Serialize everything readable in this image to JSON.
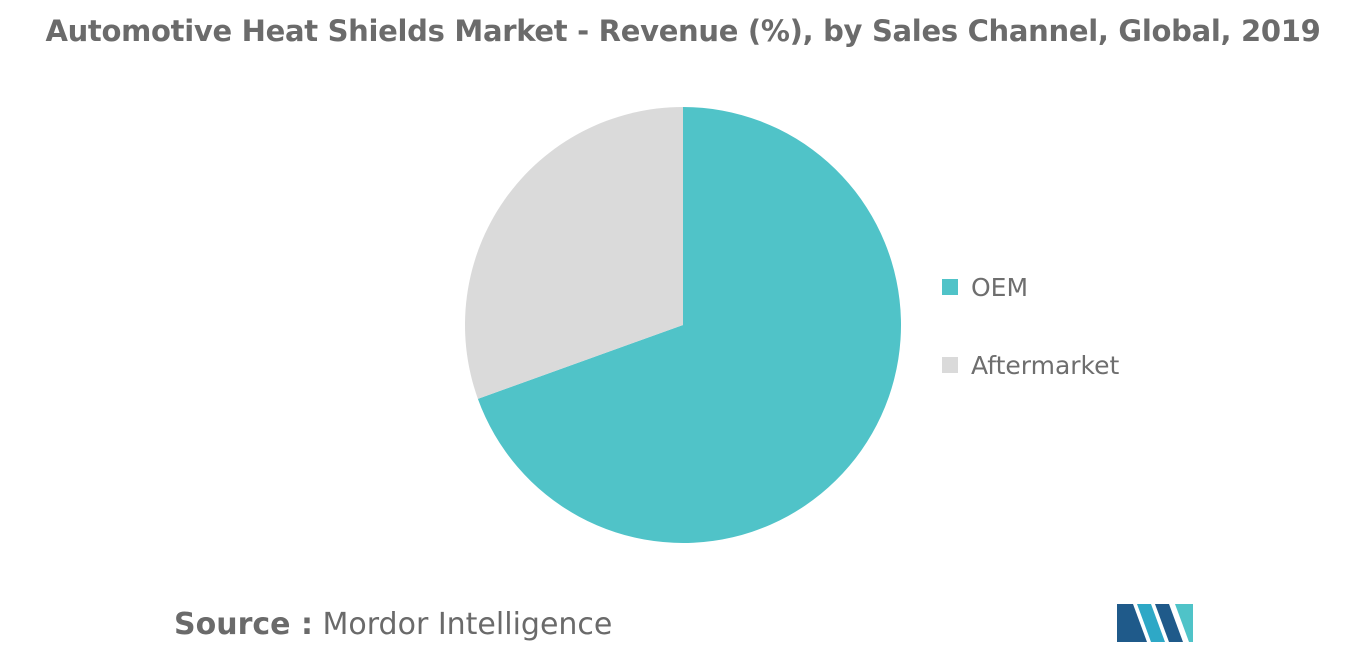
{
  "title": "Automotive Heat Shields Market - Revenue (%), by Sales Channel, Global, 2019",
  "source": {
    "prefix": "Source :",
    "name": "Mordor Intelligence"
  },
  "logo": {
    "icon": "mordor-intelligence-logo-icon",
    "colors": [
      "#1f5a8a",
      "#2ea8c6",
      "#4fc3c8"
    ]
  },
  "chart_data": {
    "type": "pie",
    "title": "Automotive Heat Shields Market - Revenue (%), by Sales Channel, Global, 2019",
    "categories": [
      "OEM",
      "Aftermarket"
    ],
    "values": [
      69.5,
      30.5
    ],
    "colors": [
      "#50c3c8",
      "#dadada"
    ],
    "start_angle_deg": 0,
    "direction": "clockwise",
    "legend": {
      "placement": "right",
      "items": [
        {
          "label": "OEM",
          "color": "#50c3c8"
        },
        {
          "label": "Aftermarket",
          "color": "#dadada"
        }
      ]
    }
  }
}
